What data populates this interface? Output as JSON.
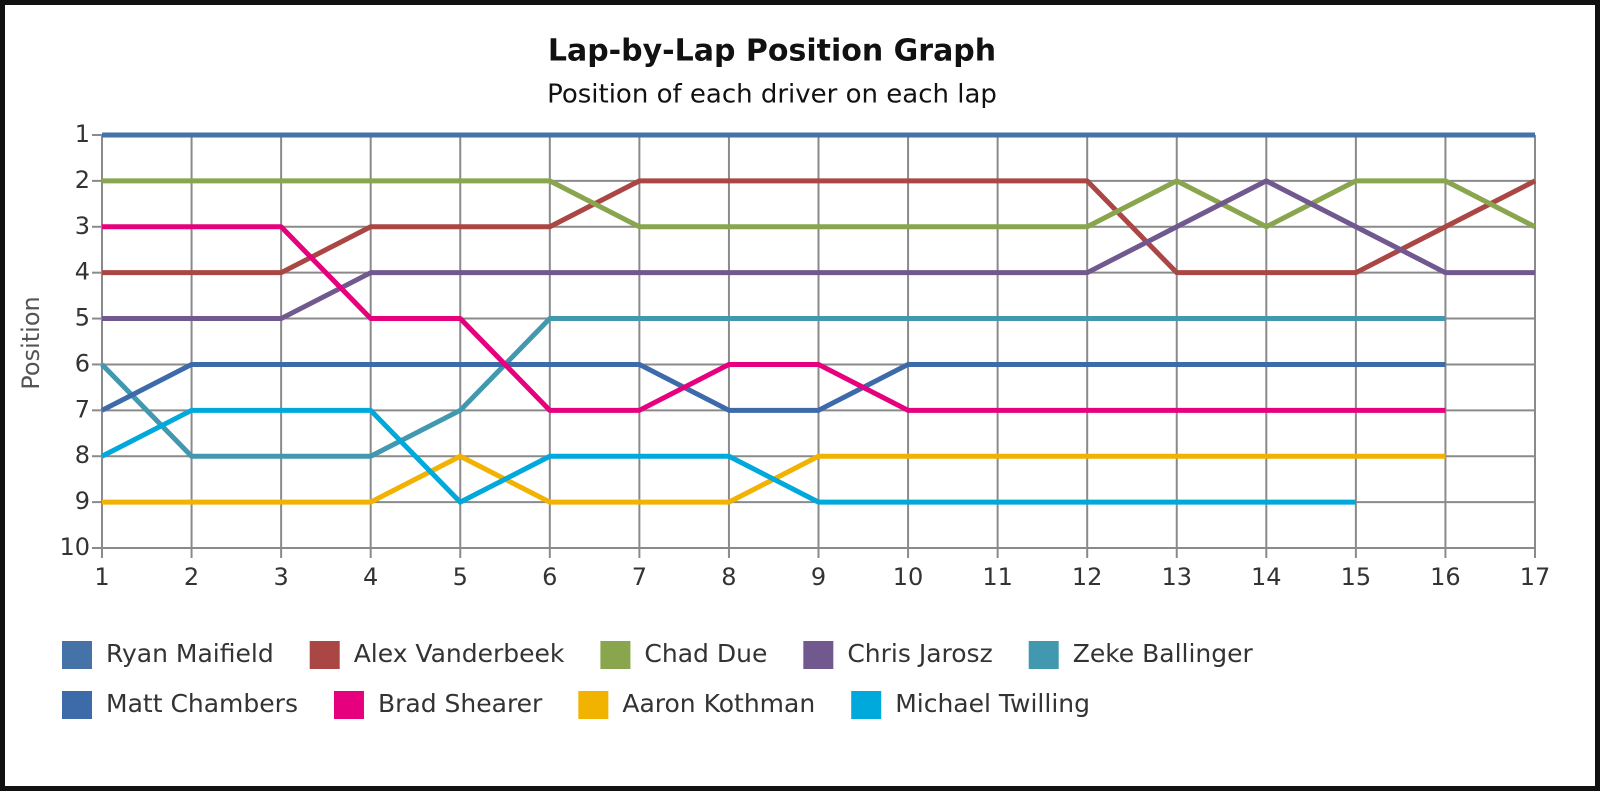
{
  "chart_data": {
    "type": "line",
    "title": "Lap-by-Lap Position Graph",
    "subtitle": "Position of each driver on each lap",
    "ylabel": "Position",
    "x": [
      1,
      2,
      3,
      4,
      5,
      6,
      7,
      8,
      9,
      10,
      11,
      12,
      13,
      14,
      15,
      16,
      17
    ],
    "xlim": [
      1,
      17
    ],
    "xticks": [
      1,
      2,
      3,
      4,
      5,
      6,
      7,
      8,
      9,
      10,
      11,
      12,
      13,
      14,
      15,
      16,
      17
    ],
    "ylim": [
      1,
      10
    ],
    "y_inverted": true,
    "yticks": [
      1,
      2,
      3,
      4,
      5,
      6,
      7,
      8,
      9,
      10
    ],
    "grid": true,
    "legend": "bottom",
    "series": [
      {
        "name": "Ryan Maifield",
        "color": "#4572a7",
        "values": [
          1,
          1,
          1,
          1,
          1,
          1,
          1,
          1,
          1,
          1,
          1,
          1,
          1,
          1,
          1,
          1,
          1
        ]
      },
      {
        "name": "Alex Vanderbeek",
        "color": "#aa4643",
        "values": [
          4,
          4,
          4,
          3,
          3,
          3,
          2,
          2,
          2,
          2,
          2,
          2,
          4,
          4,
          4,
          3,
          2
        ]
      },
      {
        "name": "Chad Due",
        "color": "#89a54e",
        "values": [
          2,
          2,
          2,
          2,
          2,
          2,
          3,
          3,
          3,
          3,
          3,
          3,
          2,
          3,
          2,
          2,
          3
        ]
      },
      {
        "name": "Chris Jarosz",
        "color": "#71588f",
        "values": [
          5,
          5,
          5,
          4,
          4,
          4,
          4,
          4,
          4,
          4,
          4,
          4,
          3,
          2,
          3,
          4,
          4
        ]
      },
      {
        "name": "Zeke Ballinger",
        "color": "#4198af",
        "values": [
          6,
          8,
          8,
          8,
          7,
          5,
          5,
          5,
          5,
          5,
          5,
          5,
          5,
          5,
          5,
          5,
          null
        ]
      },
      {
        "name": "Matt Chambers",
        "color": "#3d6aa8",
        "values": [
          7,
          6,
          6,
          6,
          6,
          6,
          6,
          7,
          7,
          6,
          6,
          6,
          6,
          6,
          6,
          6,
          null
        ]
      },
      {
        "name": "Brad Shearer",
        "color": "#e6007e",
        "values": [
          3,
          3,
          3,
          5,
          5,
          7,
          7,
          6,
          6,
          7,
          7,
          7,
          7,
          7,
          7,
          7,
          null
        ]
      },
      {
        "name": "Aaron Kothman",
        "color": "#f2b200",
        "values": [
          9,
          9,
          9,
          9,
          8,
          9,
          9,
          9,
          8,
          8,
          8,
          8,
          8,
          8,
          8,
          8,
          null
        ]
      },
      {
        "name": "Michael Twilling",
        "color": "#00a9dc",
        "values": [
          8,
          7,
          7,
          7,
          9,
          8,
          8,
          8,
          9,
          9,
          9,
          9,
          9,
          9,
          9,
          null,
          null
        ]
      }
    ]
  }
}
